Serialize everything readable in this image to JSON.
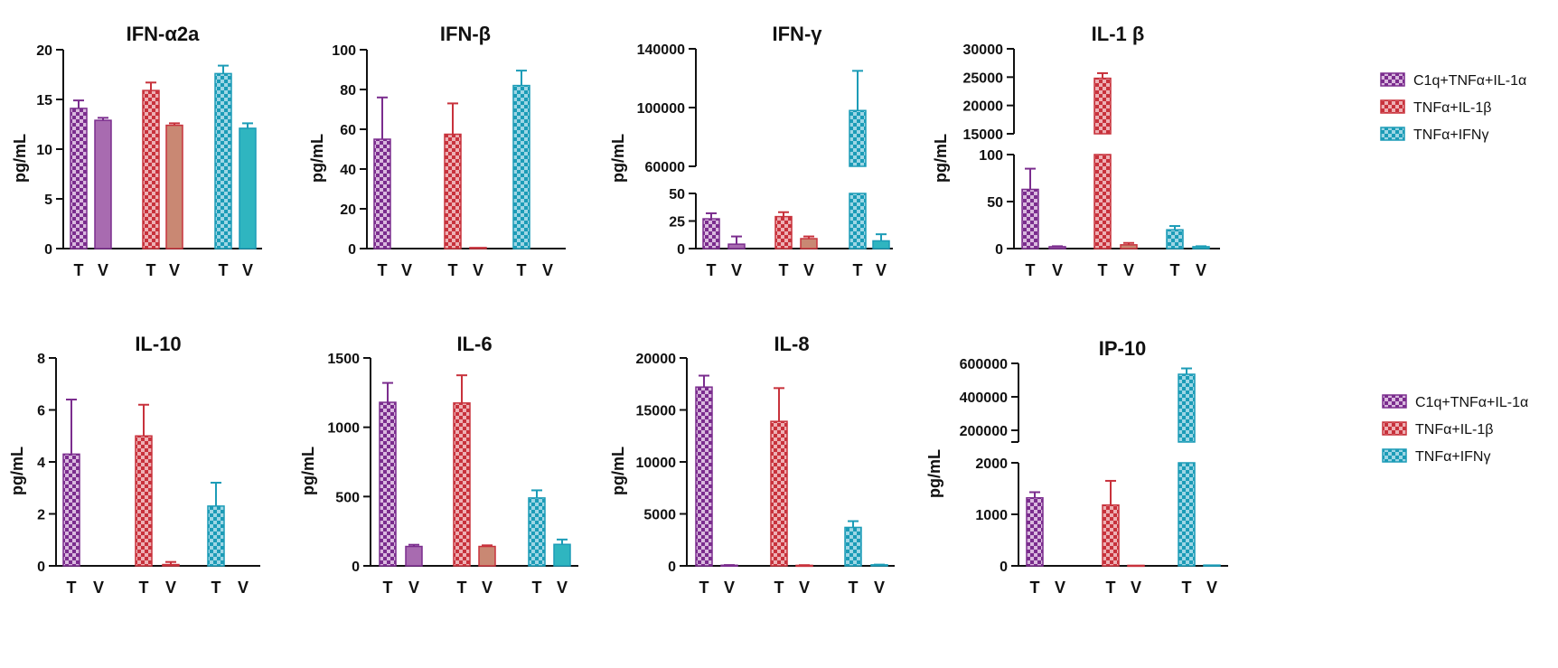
{
  "colors": {
    "purple": "#7B2D8E",
    "red": "#C8323C",
    "teal": "#1C9CB7",
    "purple_solid": "#A86BB0",
    "red_solid": "#C98873",
    "teal_solid": "#2FB5C0"
  },
  "legend": [
    {
      "label": "C1q+TNFα+IL-1α",
      "color": "purple"
    },
    {
      "label": "TNFα+IL-1β",
      "color": "red"
    },
    {
      "label": "TNFα+IFNγ",
      "color": "teal"
    }
  ],
  "chart_data": [
    {
      "type": "bar",
      "title": "IFN-α2a",
      "ylabel": "pg/mL",
      "categories": [
        "T",
        "V",
        "T",
        "V",
        "T",
        "V"
      ],
      "values": [
        14.1,
        12.9,
        15.9,
        12.4,
        17.6,
        12.1
      ],
      "errors": [
        0.8,
        0.25,
        0.8,
        0.2,
        0.8,
        0.5
      ],
      "ylim": [
        0,
        20
      ],
      "yticks": [
        0,
        5,
        10,
        15,
        20
      ]
    },
    {
      "type": "bar",
      "title": "IFN-β",
      "ylabel": "pg/mL",
      "categories": [
        "T",
        "V",
        "T",
        "V",
        "T",
        "V"
      ],
      "values": [
        55,
        0,
        57.5,
        0.5,
        82,
        0
      ],
      "errors": [
        21,
        0,
        15.5,
        0,
        7.5,
        0
      ],
      "ylim": [
        0,
        100
      ],
      "yticks": [
        0,
        20,
        40,
        60,
        80,
        100
      ]
    },
    {
      "type": "bar",
      "title": "IFN-γ",
      "ylabel": "pg/mL",
      "categories": [
        "T",
        "V",
        "T",
        "V",
        "T",
        "V"
      ],
      "values": [
        27,
        4,
        29,
        9,
        98000,
        7
      ],
      "errors": [
        5,
        7,
        4,
        2,
        27000,
        6
      ],
      "segments": [
        {
          "range": [
            0,
            50
          ],
          "ticks": [
            0,
            25,
            50
          ]
        },
        {
          "range": [
            60000,
            140000
          ],
          "ticks": [
            60000,
            100000,
            140000
          ]
        }
      ]
    },
    {
      "type": "bar",
      "title": "IL-1 β",
      "ylabel": "pg/mL",
      "categories": [
        "T",
        "V",
        "T",
        "V",
        "T",
        "V"
      ],
      "values": [
        63,
        2,
        24800,
        4,
        20,
        2
      ],
      "errors": [
        22,
        0.5,
        900,
        2,
        4,
        0.5
      ],
      "segments": [
        {
          "range": [
            0,
            100
          ],
          "ticks": [
            0,
            50,
            100
          ]
        },
        {
          "range": [
            15000,
            30000
          ],
          "ticks": [
            15000,
            20000,
            25000,
            30000
          ]
        }
      ]
    },
    {
      "type": "bar",
      "title": "IL-10",
      "ylabel": "pg/mL",
      "categories": [
        "T",
        "V",
        "T",
        "V",
        "T",
        "V"
      ],
      "values": [
        4.3,
        0,
        5.0,
        0.05,
        2.3,
        0
      ],
      "errors": [
        2.1,
        0,
        1.2,
        0.1,
        0.9,
        0
      ],
      "ylim": [
        0,
        8
      ],
      "yticks": [
        0,
        2,
        4,
        6,
        8
      ]
    },
    {
      "type": "bar",
      "title": "IL-6",
      "ylabel": "pg/mL",
      "categories": [
        "T",
        "V",
        "T",
        "V",
        "T",
        "V"
      ],
      "values": [
        1180,
        140,
        1175,
        140,
        490,
        155
      ],
      "errors": [
        140,
        12,
        200,
        8,
        55,
        35
      ],
      "ylim": [
        0,
        1500
      ],
      "yticks": [
        0,
        500,
        1000,
        1500
      ]
    },
    {
      "type": "bar",
      "title": "IL-8",
      "ylabel": "pg/mL",
      "categories": [
        "T",
        "V",
        "T",
        "V",
        "T",
        "V"
      ],
      "values": [
        17200,
        60,
        13900,
        50,
        3700,
        100
      ],
      "errors": [
        1100,
        20,
        3200,
        20,
        600,
        20
      ],
      "ylim": [
        0,
        20000
      ],
      "yticks": [
        0,
        5000,
        10000,
        15000,
        20000
      ]
    },
    {
      "type": "bar",
      "title": "IP-10",
      "ylabel": "pg/mL",
      "categories": [
        "T",
        "V",
        "T",
        "V",
        "T",
        "V"
      ],
      "values": [
        1320,
        0,
        1180,
        10,
        535000,
        15
      ],
      "errors": [
        110,
        0,
        470,
        0,
        35000,
        0
      ],
      "segments": [
        {
          "range": [
            0,
            2000
          ],
          "ticks": [
            0,
            1000,
            2000
          ]
        },
        {
          "range": [
            130000,
            600000
          ],
          "ticks": [
            200000,
            400000,
            600000
          ]
        }
      ]
    }
  ]
}
